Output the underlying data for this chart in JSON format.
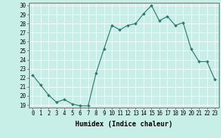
{
  "x": [
    0,
    1,
    2,
    3,
    4,
    5,
    6,
    7,
    8,
    9,
    10,
    11,
    12,
    13,
    14,
    15,
    16,
    17,
    18,
    19,
    20,
    21,
    22,
    23
  ],
  "y": [
    22.3,
    21.2,
    20.1,
    19.3,
    19.6,
    19.1,
    18.9,
    18.9,
    22.5,
    25.2,
    27.8,
    27.3,
    27.8,
    28.0,
    29.1,
    30.0,
    28.3,
    28.8,
    27.8,
    28.1,
    25.2,
    23.8,
    23.8,
    21.8
  ],
  "line_color": "#2d7a6e",
  "marker": "D",
  "marker_size": 2.0,
  "bg_color": "#c8eee8",
  "grid_color": "#ffffff",
  "grid_minor_color": "#ddeee8",
  "xlabel": "Humidex (Indice chaleur)",
  "ylim": [
    19,
    30
  ],
  "xlim": [
    -0.5,
    23.5
  ],
  "yticks": [
    19,
    20,
    21,
    22,
    23,
    24,
    25,
    26,
    27,
    28,
    29,
    30
  ],
  "xticks": [
    0,
    1,
    2,
    3,
    4,
    5,
    6,
    7,
    8,
    9,
    10,
    11,
    12,
    13,
    14,
    15,
    16,
    17,
    18,
    19,
    20,
    21,
    22,
    23
  ],
  "tick_label_size": 5.5,
  "xlabel_size": 7.0,
  "xlabel_weight": "bold",
  "linewidth": 0.9
}
